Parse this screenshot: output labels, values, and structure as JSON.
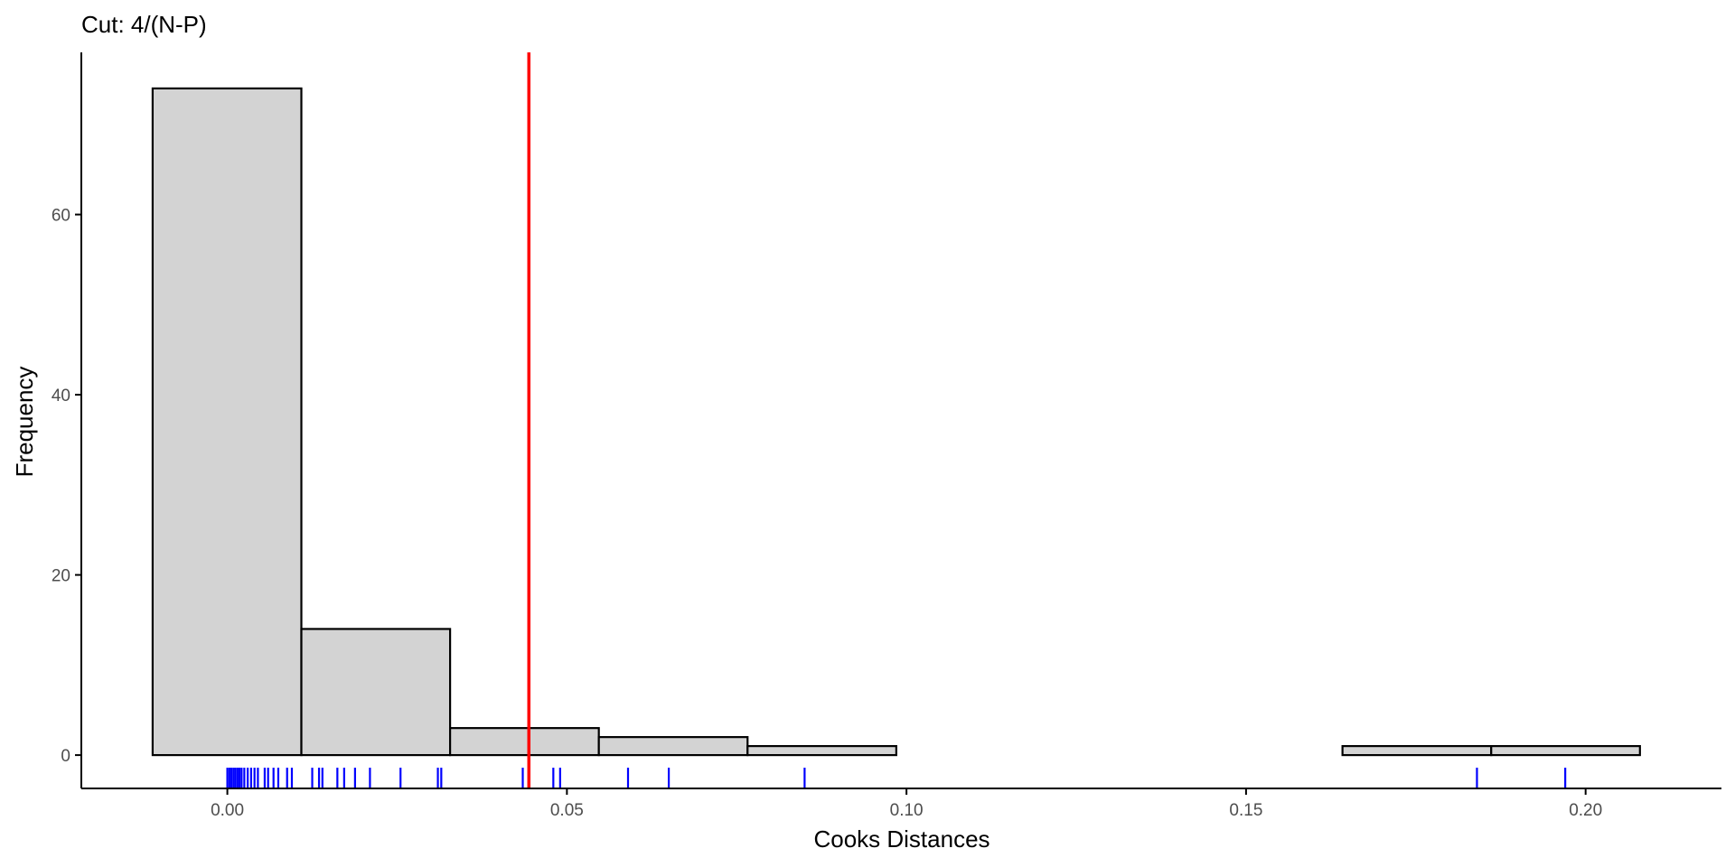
{
  "chart_data": {
    "type": "histogram",
    "title": "Cut: 4/(N-P)",
    "xlabel": "Cooks Distances",
    "ylabel": "Frequency",
    "xlim": [
      -0.0215,
      0.22
    ],
    "ylim": [
      -3.7,
      78
    ],
    "x_ticks": [
      0.0,
      0.05,
      0.1,
      0.15,
      0.2
    ],
    "x_tick_labels": [
      "0.00",
      "0.05",
      "0.10",
      "0.15",
      "0.20"
    ],
    "y_ticks": [
      0,
      20,
      40,
      60
    ],
    "y_tick_labels": [
      "0",
      "20",
      "40",
      "60"
    ],
    "bins": [
      {
        "start": -0.011,
        "end": 0.0109,
        "count": 74
      },
      {
        "start": 0.0109,
        "end": 0.0328,
        "count": 14
      },
      {
        "start": 0.0328,
        "end": 0.0547,
        "count": 3
      },
      {
        "start": 0.0547,
        "end": 0.0766,
        "count": 2
      },
      {
        "start": 0.0766,
        "end": 0.0985,
        "count": 1
      },
      {
        "start": 0.0985,
        "end": 0.1204,
        "count": 0
      },
      {
        "start": 0.1204,
        "end": 0.1423,
        "count": 0
      },
      {
        "start": 0.1423,
        "end": 0.1642,
        "count": 0
      },
      {
        "start": 0.1642,
        "end": 0.1861,
        "count": 1
      },
      {
        "start": 0.1861,
        "end": 0.208,
        "count": 1
      }
    ],
    "cutoff": 0.0444,
    "rug": [
      0.0,
      0.0003,
      0.0006,
      0.0009,
      0.0012,
      0.0015,
      0.0018,
      0.0021,
      0.0025,
      0.003,
      0.0035,
      0.004,
      0.0045,
      0.0055,
      0.006,
      0.0068,
      0.0075,
      0.0088,
      0.0095,
      0.0125,
      0.0135,
      0.014,
      0.0162,
      0.0172,
      0.0188,
      0.021,
      0.0255,
      0.031,
      0.0315,
      0.0435,
      0.048,
      0.049,
      0.059,
      0.065,
      0.085,
      0.184,
      0.197
    ],
    "grid": false,
    "colors": {
      "bar_fill": "#d3d3d3",
      "bar_stroke": "#000000",
      "cutoff_line": "#ff0000",
      "rug": "#0000ff",
      "axis": "#000000",
      "tick_label": "#4d4d4d"
    }
  }
}
